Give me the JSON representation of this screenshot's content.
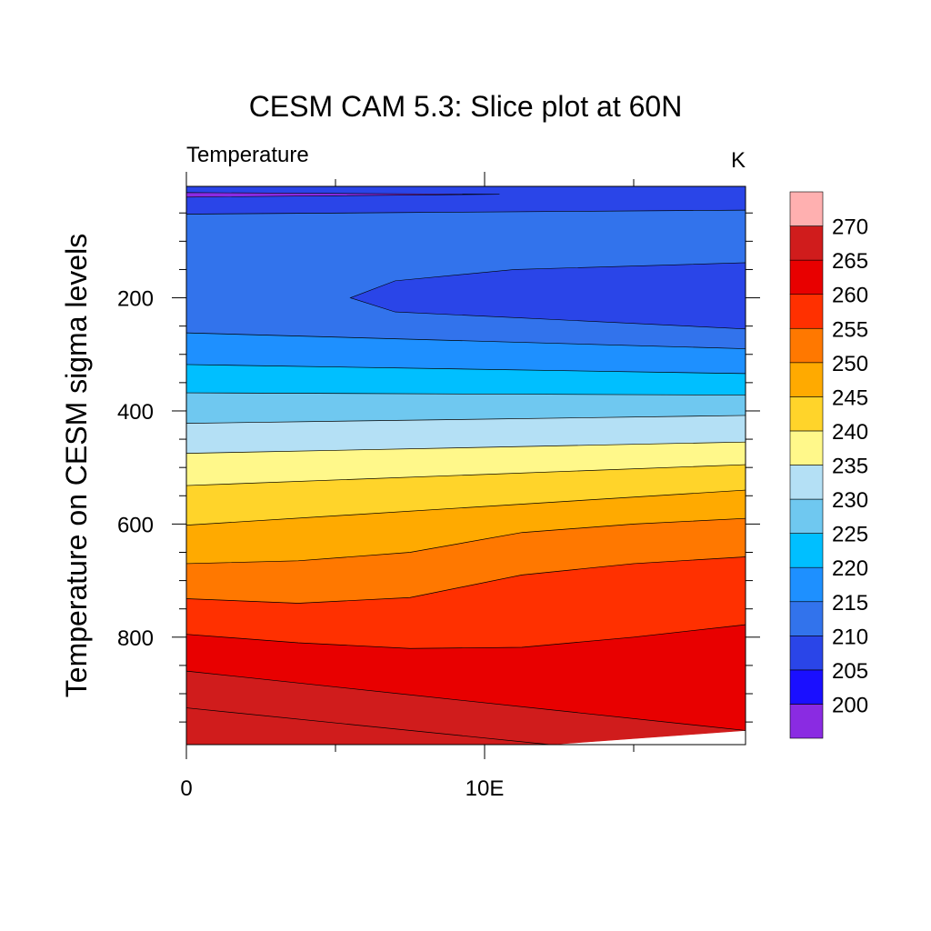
{
  "chart_data": {
    "type": "heatmap",
    "subtype": "filled-contour",
    "title": "CESM CAM 5.3: Slice plot at 60N",
    "left_string": "Temperature",
    "right_string": "K",
    "ylabel": "Temperature on CESM sigma levels",
    "xlabel": "",
    "xlim": [
      0,
      18.75
    ],
    "ylim": [
      990,
      3
    ],
    "y_reversed": true,
    "x_ticks": [
      {
        "value": 0,
        "label": "0"
      },
      {
        "value": 10,
        "label": "10E"
      }
    ],
    "y_ticks": [
      {
        "value": 200,
        "label": "200"
      },
      {
        "value": 400,
        "label": "400"
      },
      {
        "value": 600,
        "label": "600"
      },
      {
        "value": 800,
        "label": "800"
      }
    ],
    "levels": [
      200,
      205,
      210,
      215,
      220,
      225,
      230,
      235,
      240,
      245,
      250,
      255,
      260,
      265,
      270
    ],
    "colorbar_labels": [
      "200",
      "205",
      "210",
      "215",
      "220",
      "225",
      "230",
      "235",
      "240",
      "245",
      "250",
      "255",
      "260",
      "265",
      "270"
    ],
    "colors": [
      "#8a2be2",
      "#1a0fff",
      "#2a45e8",
      "#3273ec",
      "#1e90ff",
      "#00bfff",
      "#6fc8f0",
      "#b4e0f5",
      "#fff88a",
      "#ffd42a",
      "#ffaa00",
      "#ff7800",
      "#ff3000",
      "#e80000",
      "#d01c1c",
      "#ffb0b0"
    ],
    "contour_boundaries": [
      {
        "level": 200,
        "x": [
          0,
          10.5,
          0
        ],
        "y": [
          14,
          17,
          22
        ]
      },
      {
        "level": 205,
        "x": [
          0,
          18.75
        ],
        "y": [
          52,
          45
        ]
      },
      {
        "level": 210,
        "x": [
          0,
          18.75
        ],
        "y": [
          262,
          290
        ]
      },
      {
        "level": 215,
        "x": [
          0,
          18.75
        ],
        "y": [
          318,
          334
        ]
      },
      {
        "level": 220,
        "x": [
          0,
          18.75
        ],
        "y": [
          368,
          372
        ]
      },
      {
        "level": 225,
        "x": [
          0,
          18.75
        ],
        "y": [
          422,
          408
        ]
      },
      {
        "level": 230,
        "x": [
          0,
          18.75
        ],
        "y": [
          475,
          455
        ]
      },
      {
        "level": 235,
        "x": [
          0,
          18.75
        ],
        "y": [
          532,
          495
        ]
      },
      {
        "level": 240,
        "x": [
          0,
          18.75
        ],
        "y": [
          602,
          540
        ]
      },
      {
        "level": 245,
        "x": [
          0,
          3.75,
          7.5,
          11.25,
          15,
          18.75
        ],
        "y": [
          670,
          665,
          650,
          615,
          600,
          590
        ]
      },
      {
        "level": 250,
        "x": [
          0,
          3.75,
          7.5,
          11.25,
          15,
          18.75
        ],
        "y": [
          732,
          740,
          730,
          690,
          670,
          658
        ]
      },
      {
        "level": 255,
        "x": [
          0,
          3.75,
          7.5,
          11.25,
          15,
          18.75
        ],
        "y": [
          795,
          810,
          820,
          818,
          800,
          778
        ]
      },
      {
        "level": 260,
        "x": [
          0,
          18.75
        ],
        "y": [
          860,
          965
        ]
      },
      {
        "level": 265,
        "x": [
          0,
          12.2
        ],
        "y": [
          925,
          990
        ]
      }
    ],
    "cold_core_205": {
      "x": [
        5.5,
        7,
        11,
        18.75,
        18.75,
        11,
        7,
        5.5
      ],
      "y": [
        200,
        170,
        150,
        138,
        255,
        235,
        225,
        200
      ]
    }
  }
}
